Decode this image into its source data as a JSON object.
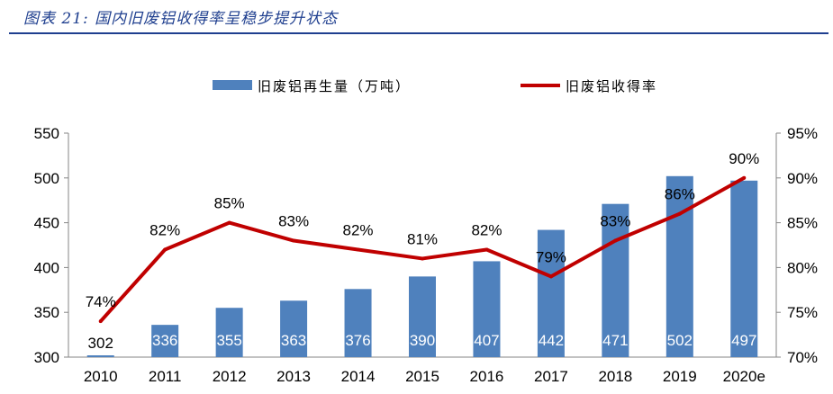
{
  "title": "图表 21:  国内旧废铝收得率呈稳步提升状态",
  "chart_data": {
    "type": "bar+line",
    "categories": [
      "2010",
      "2011",
      "2012",
      "2013",
      "2014",
      "2015",
      "2016",
      "2017",
      "2018",
      "2019",
      "2020e"
    ],
    "series": [
      {
        "name": "旧废铝再生量（万吨）",
        "type": "bar",
        "axis": "left",
        "color": "#4f81bd",
        "values": [
          302,
          336,
          355,
          363,
          376,
          390,
          407,
          442,
          471,
          502,
          497
        ]
      },
      {
        "name": "旧废铝收得率",
        "type": "line",
        "axis": "right",
        "color": "#c00000",
        "values": [
          74,
          82,
          85,
          83,
          82,
          81,
          82,
          79,
          83,
          86,
          90
        ],
        "labels": [
          "74%",
          "82%",
          "85%",
          "83%",
          "82%",
          "81%",
          "82%",
          "79%",
          "83%",
          "86%",
          "90%"
        ]
      }
    ],
    "ylim_left": [
      300,
      550
    ],
    "yticks_left": [
      "300",
      "350",
      "400",
      "450",
      "500",
      "550"
    ],
    "ylim_right": [
      70,
      95
    ],
    "yticks_right": [
      "70%",
      "75%",
      "80%",
      "85%",
      "90%",
      "95%"
    ],
    "legend": "top-center",
    "grid": false
  }
}
